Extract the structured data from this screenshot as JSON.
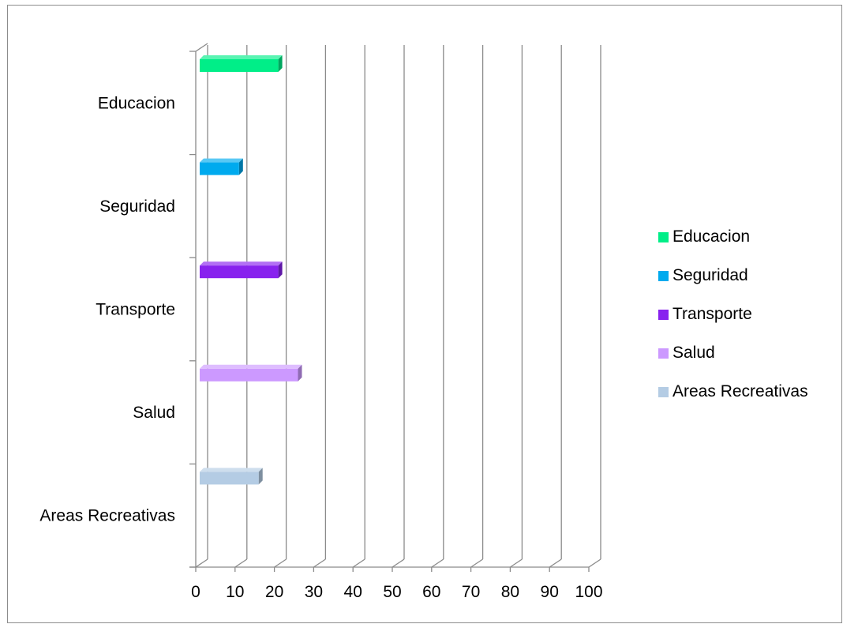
{
  "chart_data": {
    "type": "bar",
    "orientation": "horizontal",
    "categories": [
      "Educacion",
      "Seguridad",
      "Transporte",
      "Salud",
      "Areas Recreativas"
    ],
    "values": [
      20,
      10,
      20,
      25,
      15
    ],
    "colors": [
      "#00ee88",
      "#00aaee",
      "#8822ee",
      "#cc99ff",
      "#b4cce4"
    ],
    "x_ticks": [
      "0",
      "10",
      "20",
      "30",
      "40",
      "50",
      "60",
      "70",
      "80",
      "90",
      "100"
    ],
    "xlim": [
      0,
      100
    ],
    "grid": true,
    "legend_position": "right",
    "legend": [
      "Educacion",
      "Seguridad",
      "Transporte",
      "Salud",
      "Areas Recreativas"
    ]
  }
}
